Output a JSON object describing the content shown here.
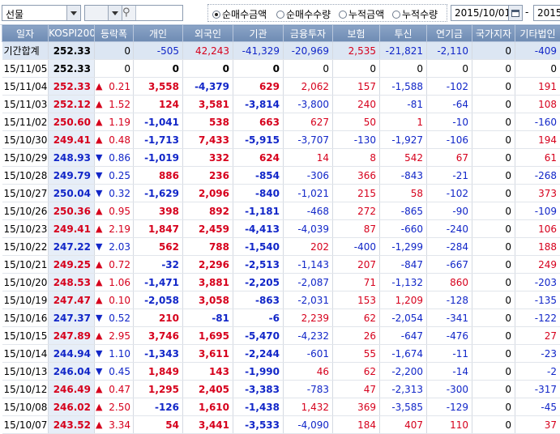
{
  "toolbar": {
    "market_select": "선물",
    "radios": [
      {
        "label": "순매수금액",
        "selected": true
      },
      {
        "label": "순매수수량",
        "selected": false
      },
      {
        "label": "누적금액",
        "selected": false
      },
      {
        "label": "누적수량",
        "selected": false
      }
    ],
    "start_date": "2015/10/01",
    "end_date_partial": "2015",
    "date_separator": "-"
  },
  "columns": [
    "일자",
    "KOSPI200",
    "등락폭",
    "개인",
    "외국인",
    "기관",
    "금융투자",
    "보험",
    "투신",
    "연기금",
    "국가지자",
    "기타법인"
  ],
  "colors": {
    "up": "#d6001c",
    "down": "#1126c8",
    "header": "#7b95bc"
  },
  "rows": [
    {
      "date": "기간합계",
      "kospi": "252.33",
      "dir": "",
      "chg": "0",
      "indiv": "-505",
      "foreign": "42,243",
      "inst": "-41,329",
      "fin": "-20,969",
      "ins": "2,535",
      "trust": "-21,821",
      "pension": "-2,110",
      "gov": "0",
      "etc": "-409",
      "summary": true
    },
    {
      "date": "15/11/05",
      "kospi": "252.33",
      "dir": "",
      "chg": "0",
      "indiv": "0",
      "foreign": "0",
      "inst": "0",
      "fin": "0",
      "ins": "0",
      "trust": "0",
      "pension": "0",
      "gov": "0",
      "etc": "0"
    },
    {
      "date": "15/11/04",
      "kospi": "252.33",
      "dir": "up",
      "chg": "0.21",
      "indiv": "3,558",
      "foreign": "-4,379",
      "inst": "629",
      "fin": "2,062",
      "ins": "157",
      "trust": "-1,588",
      "pension": "-102",
      "gov": "0",
      "etc": "191"
    },
    {
      "date": "15/11/03",
      "kospi": "252.12",
      "dir": "up",
      "chg": "1.52",
      "indiv": "124",
      "foreign": "3,581",
      "inst": "-3,814",
      "fin": "-3,800",
      "ins": "240",
      "trust": "-81",
      "pension": "-64",
      "gov": "0",
      "etc": "108"
    },
    {
      "date": "15/11/02",
      "kospi": "250.60",
      "dir": "up",
      "chg": "1.19",
      "indiv": "-1,041",
      "foreign": "538",
      "inst": "663",
      "fin": "627",
      "ins": "50",
      "trust": "1",
      "pension": "-10",
      "gov": "0",
      "etc": "-160"
    },
    {
      "date": "15/10/30",
      "kospi": "249.41",
      "dir": "up",
      "chg": "0.48",
      "indiv": "-1,713",
      "foreign": "7,433",
      "inst": "-5,915",
      "fin": "-3,707",
      "ins": "-130",
      "trust": "-1,927",
      "pension": "-106",
      "gov": "0",
      "etc": "194"
    },
    {
      "date": "15/10/29",
      "kospi": "248.93",
      "dir": "down",
      "chg": "0.86",
      "indiv": "-1,019",
      "foreign": "332",
      "inst": "624",
      "fin": "14",
      "ins": "8",
      "trust": "542",
      "pension": "67",
      "gov": "0",
      "etc": "61"
    },
    {
      "date": "15/10/28",
      "kospi": "249.79",
      "dir": "down",
      "chg": "0.25",
      "indiv": "886",
      "foreign": "236",
      "inst": "-854",
      "fin": "-306",
      "ins": "366",
      "trust": "-843",
      "pension": "-21",
      "gov": "0",
      "etc": "-268"
    },
    {
      "date": "15/10/27",
      "kospi": "250.04",
      "dir": "down",
      "chg": "0.32",
      "indiv": "-1,629",
      "foreign": "2,096",
      "inst": "-840",
      "fin": "-1,021",
      "ins": "215",
      "trust": "58",
      "pension": "-102",
      "gov": "0",
      "etc": "373"
    },
    {
      "date": "15/10/26",
      "kospi": "250.36",
      "dir": "up",
      "chg": "0.95",
      "indiv": "398",
      "foreign": "892",
      "inst": "-1,181",
      "fin": "-468",
      "ins": "272",
      "trust": "-865",
      "pension": "-90",
      "gov": "0",
      "etc": "-109"
    },
    {
      "date": "15/10/23",
      "kospi": "249.41",
      "dir": "up",
      "chg": "2.19",
      "indiv": "1,847",
      "foreign": "2,459",
      "inst": "-4,413",
      "fin": "-4,039",
      "ins": "87",
      "trust": "-660",
      "pension": "-240",
      "gov": "0",
      "etc": "106"
    },
    {
      "date": "15/10/22",
      "kospi": "247.22",
      "dir": "down",
      "chg": "2.03",
      "indiv": "562",
      "foreign": "788",
      "inst": "-1,540",
      "fin": "202",
      "ins": "-400",
      "trust": "-1,299",
      "pension": "-284",
      "gov": "0",
      "etc": "188"
    },
    {
      "date": "15/10/21",
      "kospi": "249.25",
      "dir": "up",
      "chg": "0.72",
      "indiv": "-32",
      "foreign": "2,296",
      "inst": "-2,513",
      "fin": "-1,143",
      "ins": "207",
      "trust": "-847",
      "pension": "-667",
      "gov": "0",
      "etc": "249"
    },
    {
      "date": "15/10/20",
      "kospi": "248.53",
      "dir": "up",
      "chg": "1.06",
      "indiv": "-1,471",
      "foreign": "3,881",
      "inst": "-2,205",
      "fin": "-2,087",
      "ins": "71",
      "trust": "-1,132",
      "pension": "860",
      "gov": "0",
      "etc": "-203"
    },
    {
      "date": "15/10/19",
      "kospi": "247.47",
      "dir": "up",
      "chg": "0.10",
      "indiv": "-2,058",
      "foreign": "3,058",
      "inst": "-863",
      "fin": "-2,031",
      "ins": "153",
      "trust": "1,209",
      "pension": "-128",
      "gov": "0",
      "etc": "-135"
    },
    {
      "date": "15/10/16",
      "kospi": "247.37",
      "dir": "down",
      "chg": "0.52",
      "indiv": "210",
      "foreign": "-81",
      "inst": "-6",
      "fin": "2,239",
      "ins": "62",
      "trust": "-2,054",
      "pension": "-341",
      "gov": "0",
      "etc": "-122"
    },
    {
      "date": "15/10/15",
      "kospi": "247.89",
      "dir": "up",
      "chg": "2.95",
      "indiv": "3,746",
      "foreign": "1,695",
      "inst": "-5,470",
      "fin": "-4,232",
      "ins": "26",
      "trust": "-647",
      "pension": "-476",
      "gov": "0",
      "etc": "27"
    },
    {
      "date": "15/10/14",
      "kospi": "244.94",
      "dir": "down",
      "chg": "1.10",
      "indiv": "-1,343",
      "foreign": "3,611",
      "inst": "-2,244",
      "fin": "-601",
      "ins": "55",
      "trust": "-1,674",
      "pension": "-11",
      "gov": "0",
      "etc": "-23"
    },
    {
      "date": "15/10/13",
      "kospi": "246.04",
      "dir": "down",
      "chg": "0.45",
      "indiv": "1,849",
      "foreign": "143",
      "inst": "-1,990",
      "fin": "46",
      "ins": "62",
      "trust": "-2,200",
      "pension": "-14",
      "gov": "0",
      "etc": "-2"
    },
    {
      "date": "15/10/12",
      "kospi": "246.49",
      "dir": "up",
      "chg": "0.47",
      "indiv": "1,295",
      "foreign": "2,405",
      "inst": "-3,383",
      "fin": "-783",
      "ins": "47",
      "trust": "-2,313",
      "pension": "-300",
      "gov": "0",
      "etc": "-317"
    },
    {
      "date": "15/10/08",
      "kospi": "246.02",
      "dir": "up",
      "chg": "2.50",
      "indiv": "-126",
      "foreign": "1,610",
      "inst": "-1,438",
      "fin": "1,432",
      "ins": "369",
      "trust": "-3,585",
      "pension": "-129",
      "gov": "0",
      "etc": "-45"
    },
    {
      "date": "15/10/07",
      "kospi": "243.52",
      "dir": "up",
      "chg": "3.34",
      "indiv": "54",
      "foreign": "3,441",
      "inst": "-3,533",
      "fin": "-4,090",
      "ins": "184",
      "trust": "407",
      "pension": "110",
      "gov": "0",
      "etc": "37"
    }
  ]
}
